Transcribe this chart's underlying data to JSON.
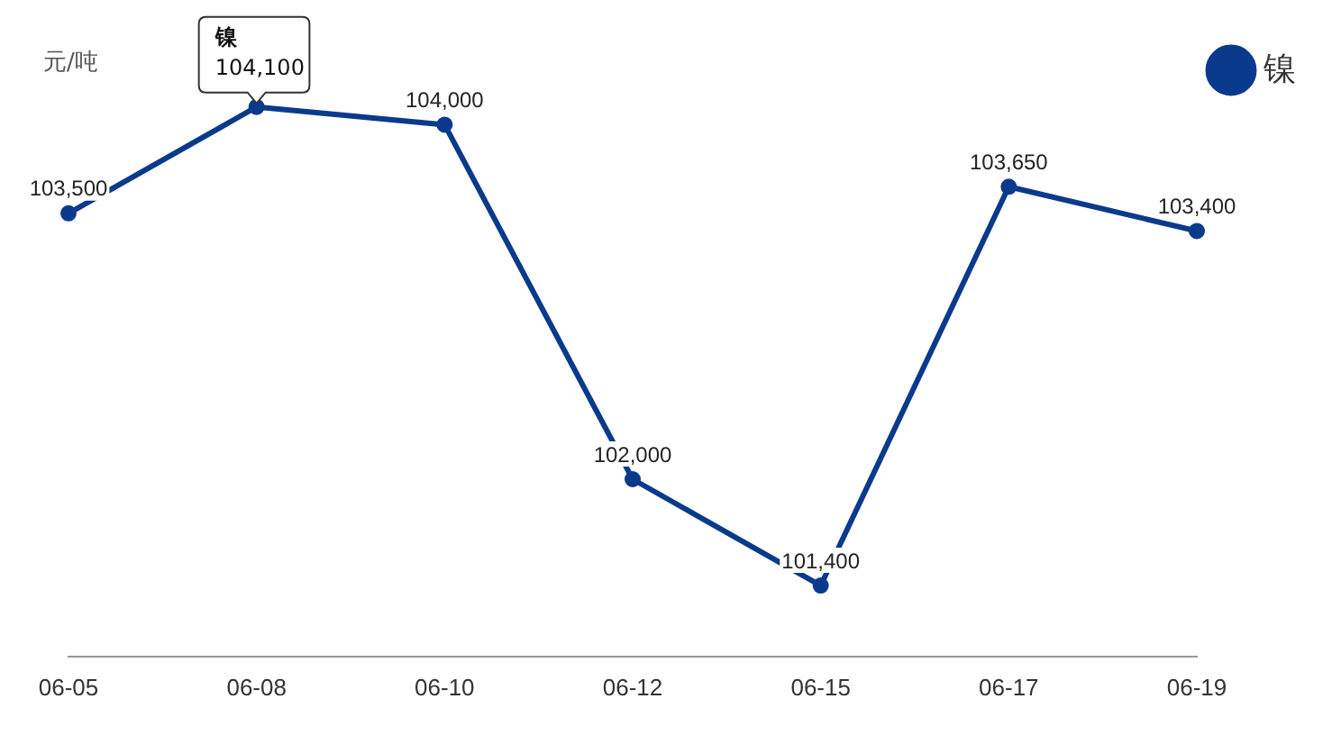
{
  "chart_data": {
    "type": "line",
    "categories": [
      "06-05",
      "06-08",
      "06-10",
      "06-12",
      "06-15",
      "06-17",
      "06-19"
    ],
    "series": [
      {
        "name": "镍",
        "color": "#0a3a8c",
        "values": [
          103500,
          104100,
          104000,
          102000,
          101400,
          103650,
          103400
        ],
        "value_labels": [
          "103,500",
          null,
          "104,000",
          "102,000",
          "101,400",
          "103,650",
          "103,400"
        ]
      }
    ],
    "tick_labels": "x",
    "grid": false,
    "legend": "top right",
    "marker": "circle",
    "line_style": "solid",
    "annotations": [
      "元/吨",
      {
        "text": "镍\n104,100",
        "x": "06-08",
        "y": 104100
      }
    ]
  }
}
